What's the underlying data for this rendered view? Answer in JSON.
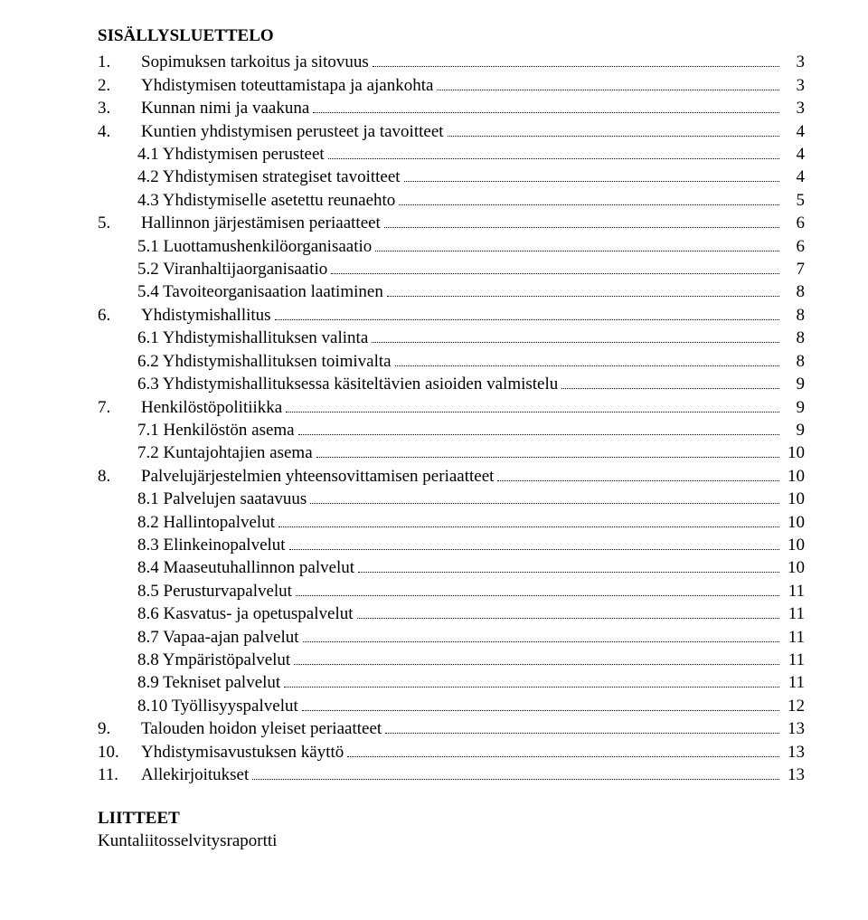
{
  "title": "SISÄLLYSLUETTELO",
  "attachments_title": "LIITTEET",
  "attachments_line": "Kuntaliitosselvitysraportti",
  "toc": [
    {
      "level": 1,
      "num": "1.",
      "label": "Sopimuksen tarkoitus ja sitovuus",
      "page": "3"
    },
    {
      "level": 1,
      "num": "2.",
      "label": "Yhdistymisen toteuttamistapa ja ajankohta",
      "page": "3"
    },
    {
      "level": 1,
      "num": "3.",
      "label": "Kunnan nimi ja vaakuna",
      "page": "3"
    },
    {
      "level": 1,
      "num": "4.",
      "label": "Kuntien yhdistymisen perusteet ja tavoitteet",
      "page": "4"
    },
    {
      "level": 2,
      "num": "",
      "label": "4.1 Yhdistymisen perusteet",
      "page": "4"
    },
    {
      "level": 2,
      "num": "",
      "label": "4.2 Yhdistymisen strategiset tavoitteet",
      "page": "4"
    },
    {
      "level": 2,
      "num": "",
      "label": "4.3 Yhdistymiselle asetettu reunaehto",
      "page": "5"
    },
    {
      "level": 1,
      "num": "5.",
      "label": "Hallinnon järjestämisen periaatteet",
      "page": "6"
    },
    {
      "level": 2,
      "num": "",
      "label": "5.1 Luottamushenkilöorganisaatio",
      "page": "6"
    },
    {
      "level": 2,
      "num": "",
      "label": "5.2 Viranhaltijaorganisaatio",
      "page": "7"
    },
    {
      "level": 2,
      "num": "",
      "label": "5.4 Tavoiteorganisaation laatiminen",
      "page": "8"
    },
    {
      "level": 1,
      "num": "6.",
      "label": "Yhdistymishallitus",
      "page": "8"
    },
    {
      "level": 2,
      "num": "",
      "label": "6.1 Yhdistymishallituksen valinta",
      "page": "8"
    },
    {
      "level": 2,
      "num": "",
      "label": "6.2 Yhdistymishallituksen toimivalta",
      "page": "8"
    },
    {
      "level": 2,
      "num": "",
      "label": "6.3 Yhdistymishallituksessa käsiteltävien asioiden valmistelu",
      "page": "9"
    },
    {
      "level": 1,
      "num": "7.",
      "label": "Henkilöstöpolitiikka",
      "page": "9"
    },
    {
      "level": 2,
      "num": "",
      "label": "7.1 Henkilöstön asema",
      "page": "9"
    },
    {
      "level": 2,
      "num": "",
      "label": "7.2 Kuntajohtajien asema",
      "page": "10"
    },
    {
      "level": 1,
      "num": "8.",
      "label": "Palvelujärjestelmien yhteensovittamisen periaatteet",
      "page": "10"
    },
    {
      "level": 2,
      "num": "",
      "label": "8.1 Palvelujen saatavuus",
      "page": "10"
    },
    {
      "level": 2,
      "num": "",
      "label": "8.2 Hallintopalvelut",
      "page": "10"
    },
    {
      "level": 2,
      "num": "",
      "label": "8.3 Elinkeinopalvelut",
      "page": "10"
    },
    {
      "level": 2,
      "num": "",
      "label": "8.4 Maaseutuhallinnon palvelut",
      "page": "10"
    },
    {
      "level": 2,
      "num": "",
      "label": "8.5 Perusturvapalvelut",
      "page": "11"
    },
    {
      "level": 2,
      "num": "",
      "label": "8.6 Kasvatus- ja opetuspalvelut",
      "page": "11"
    },
    {
      "level": 2,
      "num": "",
      "label": "8.7 Vapaa-ajan palvelut",
      "page": "11"
    },
    {
      "level": 2,
      "num": "",
      "label": "8.8 Ympäristöpalvelut",
      "page": "11"
    },
    {
      "level": 2,
      "num": "",
      "label": "8.9 Tekniset palvelut",
      "page": "11"
    },
    {
      "level": 2,
      "num": "",
      "label": "8.10 Työllisyyspalvelut",
      "page": "12"
    },
    {
      "level": 1,
      "num": "9.",
      "label": "Talouden hoidon yleiset periaatteet",
      "page": "13"
    },
    {
      "level": 1,
      "num": "10.",
      "label": "Yhdistymisavustuksen käyttö",
      "page": "13"
    },
    {
      "level": 1,
      "num": "11.",
      "label": "Allekirjoitukset",
      "page": "13"
    }
  ]
}
